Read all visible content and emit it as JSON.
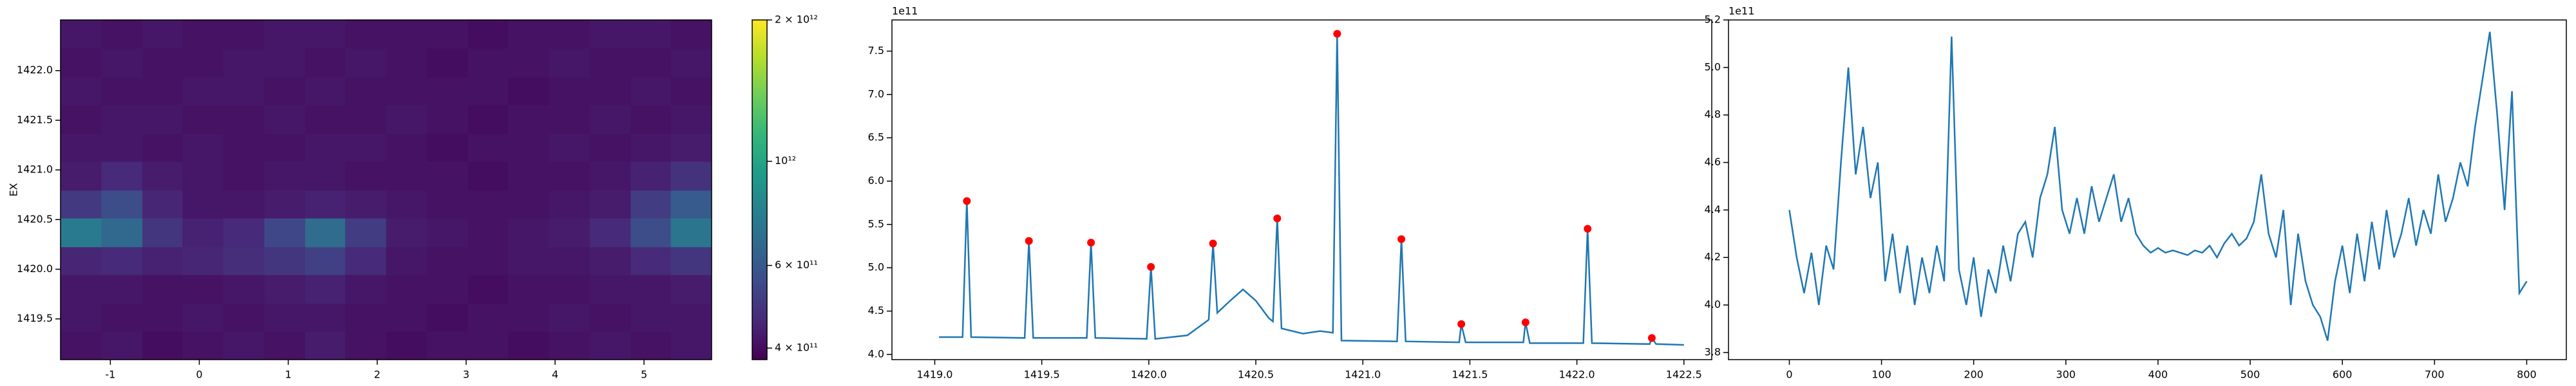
{
  "chart_data": [
    {
      "type": "heatmap",
      "ylabel": "EX",
      "x": [
        -1.33,
        -0.87,
        -0.41,
        0.04,
        0.5,
        0.96,
        1.42,
        1.87,
        2.33,
        2.79,
        3.25,
        3.7,
        4.16,
        4.62,
        5.08,
        5.53
      ],
      "y": [
        1419.23,
        1419.52,
        1419.8,
        1420.09,
        1420.37,
        1420.66,
        1420.94,
        1421.23,
        1421.51,
        1421.8,
        1422.08,
        1422.37
      ],
      "z": [
        [
          410000000000.0,
          420000000000.0,
          400000000000.0,
          410000000000.0,
          420000000000.0,
          410000000000.0,
          430000000000.0,
          410000000000.0,
          400000000000.0,
          410000000000.0,
          410000000000.0,
          400000000000.0,
          410000000000.0,
          420000000000.0,
          410000000000.0,
          420000000000.0
        ],
        [
          420000000000.0,
          410000000000.0,
          410000000000.0,
          420000000000.0,
          410000000000.0,
          420000000000.0,
          420000000000.0,
          410000000000.0,
          410000000000.0,
          400000000000.0,
          410000000000.0,
          410000000000.0,
          420000000000.0,
          410000000000.0,
          420000000000.0,
          420000000000.0
        ],
        [
          420000000000.0,
          420000000000.0,
          410000000000.0,
          410000000000.0,
          420000000000.0,
          430000000000.0,
          440000000000.0,
          420000000000.0,
          410000000000.0,
          410000000000.0,
          400000000000.0,
          410000000000.0,
          410000000000.0,
          420000000000.0,
          420000000000.0,
          430000000000.0
        ],
        [
          450000000000.0,
          460000000000.0,
          440000000000.0,
          450000000000.0,
          470000000000.0,
          490000000000.0,
          520000000000.0,
          460000000000.0,
          420000000000.0,
          410000000000.0,
          410000000000.0,
          420000000000.0,
          420000000000.0,
          430000000000.0,
          460000000000.0,
          490000000000.0
        ],
        [
          750000000000.0,
          660000000000.0,
          490000000000.0,
          440000000000.0,
          460000000000.0,
          540000000000.0,
          680000000000.0,
          510000000000.0,
          430000000000.0,
          420000000000.0,
          410000000000.0,
          420000000000.0,
          430000000000.0,
          460000000000.0,
          560000000000.0,
          720000000000.0
        ],
        [
          500000000000.0,
          560000000000.0,
          450000000000.0,
          420000000000.0,
          420000000000.0,
          430000000000.0,
          440000000000.0,
          430000000000.0,
          420000000000.0,
          410000000000.0,
          410000000000.0,
          410000000000.0,
          420000000000.0,
          430000000000.0,
          510000000000.0,
          610000000000.0
        ],
        [
          430000000000.0,
          460000000000.0,
          430000000000.0,
          420000000000.0,
          410000000000.0,
          420000000000.0,
          420000000000.0,
          410000000000.0,
          410000000000.0,
          410000000000.0,
          400000000000.0,
          410000000000.0,
          410000000000.0,
          420000000000.0,
          440000000000.0,
          480000000000.0
        ],
        [
          420000000000.0,
          420000000000.0,
          410000000000.0,
          420000000000.0,
          410000000000.0,
          410000000000.0,
          420000000000.0,
          420000000000.0,
          410000000000.0,
          400000000000.0,
          410000000000.0,
          410000000000.0,
          420000000000.0,
          410000000000.0,
          420000000000.0,
          430000000000.0
        ],
        [
          410000000000.0,
          420000000000.0,
          420000000000.0,
          410000000000.0,
          410000000000.0,
          420000000000.0,
          410000000000.0,
          410000000000.0,
          420000000000.0,
          410000000000.0,
          400000000000.0,
          410000000000.0,
          410000000000.0,
          420000000000.0,
          410000000000.0,
          420000000000.0
        ],
        [
          420000000000.0,
          410000000000.0,
          410000000000.0,
          420000000000.0,
          420000000000.0,
          410000000000.0,
          420000000000.0,
          410000000000.0,
          410000000000.0,
          410000000000.0,
          410000000000.0,
          400000000000.0,
          410000000000.0,
          410000000000.0,
          420000000000.0,
          410000000000.0
        ],
        [
          410000000000.0,
          420000000000.0,
          410000000000.0,
          410000000000.0,
          420000000000.0,
          420000000000.0,
          410000000000.0,
          420000000000.0,
          410000000000.0,
          400000000000.0,
          410000000000.0,
          410000000000.0,
          420000000000.0,
          410000000000.0,
          410000000000.0,
          420000000000.0
        ],
        [
          420000000000.0,
          410000000000.0,
          420000000000.0,
          410000000000.0,
          410000000000.0,
          420000000000.0,
          420000000000.0,
          410000000000.0,
          410000000000.0,
          410000000000.0,
          400000000000.0,
          410000000000.0,
          410000000000.0,
          420000000000.0,
          420000000000.0,
          410000000000.0
        ]
      ],
      "xlim": [
        -1.56,
        5.76
      ],
      "ylim": [
        1419.09,
        1422.51
      ],
      "xticks": [
        -1,
        0,
        1,
        2,
        3,
        4,
        5
      ],
      "yticks": [
        1419.5,
        {
          "value": 1420,
          "label": "1420.0"
        },
        1420.5,
        {
          "value": 1421,
          "label": "1421.0"
        },
        1421.5,
        {
          "value": 1422,
          "label": "1422.0"
        }
      ],
      "colorbar": {
        "colormap": "viridis",
        "scale": "log",
        "clim": [
          378000000000.0,
          2000000000000.0
        ],
        "ticks": [
          {
            "value": 2000000000000.0,
            "label": "2 × 10¹²"
          },
          {
            "value": 1000000000000.0,
            "label": "10¹²"
          },
          {
            "value": 600000000000.0,
            "label": "6 × 10¹¹"
          },
          {
            "value": 400000000000.0,
            "label": "4 × 10¹¹"
          }
        ]
      }
    },
    {
      "type": "line",
      "offset_text": "1e11",
      "xlim": [
        1418.8,
        1422.63
      ],
      "ylim": [
        3.94,
        7.86
      ],
      "xticks": [
        {
          "value": 1419,
          "label": "1419.0"
        },
        1419.5,
        {
          "value": 1420,
          "label": "1420.0"
        },
        1420.5,
        {
          "value": 1421,
          "label": "1421.0"
        },
        1421.5,
        {
          "value": 1422,
          "label": "1422.0"
        },
        1422.5
      ],
      "yticks": [
        {
          "value": 4,
          "label": "4.0"
        },
        4.5,
        {
          "value": 5,
          "label": "5.0"
        },
        5.5,
        {
          "value": 6,
          "label": "6.0"
        },
        6.5,
        {
          "value": 7,
          "label": "7.0"
        },
        7.5
      ],
      "series": [
        {
          "color": "#1f77b4",
          "style": "line",
          "x": [
            1419.02,
            1419.13,
            1419.15,
            1419.17,
            1419.42,
            1419.44,
            1419.46,
            1419.71,
            1419.73,
            1419.75,
            1419.99,
            1420.01,
            1420.03,
            1420.18,
            1420.28,
            1420.3,
            1420.32,
            1420.38,
            1420.44,
            1420.5,
            1420.56,
            1420.58,
            1420.6,
            1420.62,
            1420.72,
            1420.8,
            1420.86,
            1420.88,
            1420.9,
            1421.16,
            1421.18,
            1421.2,
            1421.45,
            1421.46,
            1421.48,
            1421.75,
            1421.76,
            1421.78,
            1422.03,
            1422.05,
            1422.07,
            1422.34,
            1422.35,
            1422.37,
            1422.5
          ],
          "values": [
            4.2,
            4.2,
            5.77,
            4.2,
            4.19,
            5.31,
            4.19,
            4.19,
            5.29,
            4.19,
            4.18,
            5.01,
            4.18,
            4.22,
            4.4,
            5.28,
            4.48,
            4.62,
            4.75,
            4.62,
            4.42,
            4.38,
            5.57,
            4.3,
            4.24,
            4.27,
            4.25,
            7.7,
            4.16,
            4.15,
            5.33,
            4.15,
            4.14,
            4.35,
            4.14,
            4.14,
            4.37,
            4.13,
            4.13,
            5.45,
            4.13,
            4.12,
            4.19,
            4.12,
            4.11
          ]
        },
        {
          "color": "#ff0000",
          "style": "marker",
          "x": [
            1419.15,
            1419.44,
            1419.73,
            1420.01,
            1420.3,
            1420.6,
            1420.88,
            1421.18,
            1421.46,
            1421.76,
            1422.05,
            1422.35
          ],
          "values": [
            5.77,
            5.31,
            5.29,
            5.01,
            5.28,
            5.57,
            7.7,
            5.33,
            4.35,
            4.37,
            5.45,
            4.19
          ]
        }
      ]
    },
    {
      "type": "line",
      "offset_text": "1e11",
      "xlim": [
        -66,
        843
      ],
      "ylim": [
        3.77,
        5.2
      ],
      "xticks": [
        0,
        100,
        200,
        300,
        400,
        500,
        600,
        700,
        800
      ],
      "yticks": [
        3.8,
        {
          "value": 4,
          "label": "4.0"
        },
        4.2,
        4.4,
        4.6,
        4.8,
        {
          "value": 5,
          "label": "5.0"
        },
        5.2
      ],
      "series": [
        {
          "color": "#1f77b4",
          "style": "line",
          "x": [
            0,
            8,
            16,
            24,
            32,
            40,
            48,
            56,
            64,
            72,
            80,
            88,
            96,
            104,
            112,
            120,
            128,
            136,
            144,
            152,
            160,
            168,
            176,
            184,
            192,
            200,
            208,
            216,
            224,
            232,
            240,
            248,
            256,
            264,
            272,
            280,
            288,
            296,
            304,
            312,
            320,
            328,
            336,
            344,
            352,
            360,
            368,
            376,
            384,
            392,
            400,
            408,
            416,
            424,
            432,
            440,
            448,
            456,
            464,
            472,
            480,
            488,
            496,
            504,
            512,
            520,
            528,
            536,
            544,
            552,
            560,
            568,
            576,
            584,
            592,
            600,
            608,
            616,
            624,
            632,
            640,
            648,
            656,
            664,
            672,
            680,
            688,
            696,
            704,
            712,
            720,
            728,
            736,
            744,
            752,
            760,
            768,
            776,
            784,
            792,
            800
          ],
          "values": [
            4.4,
            4.2,
            4.05,
            4.22,
            4.0,
            4.25,
            4.15,
            4.6,
            5.0,
            4.55,
            4.75,
            4.45,
            4.6,
            4.1,
            4.3,
            4.05,
            4.25,
            4.0,
            4.2,
            4.05,
            4.25,
            4.1,
            5.13,
            4.15,
            4.0,
            4.2,
            3.95,
            4.15,
            4.05,
            4.25,
            4.1,
            4.3,
            4.35,
            4.2,
            4.45,
            4.55,
            4.75,
            4.4,
            4.3,
            4.45,
            4.3,
            4.5,
            4.35,
            4.45,
            4.55,
            4.35,
            4.45,
            4.3,
            4.25,
            4.22,
            4.24,
            4.22,
            4.23,
            4.22,
            4.21,
            4.23,
            4.22,
            4.25,
            4.2,
            4.26,
            4.3,
            4.25,
            4.28,
            4.35,
            4.55,
            4.3,
            4.2,
            4.4,
            4.0,
            4.3,
            4.1,
            4.0,
            3.95,
            3.85,
            4.1,
            4.25,
            4.05,
            4.3,
            4.1,
            4.35,
            4.15,
            4.4,
            4.2,
            4.3,
            4.45,
            4.25,
            4.4,
            4.3,
            4.55,
            4.35,
            4.45,
            4.6,
            4.5,
            4.75,
            4.95,
            5.15,
            4.8,
            4.4,
            4.9,
            4.05,
            4.1
          ]
        }
      ]
    }
  ]
}
